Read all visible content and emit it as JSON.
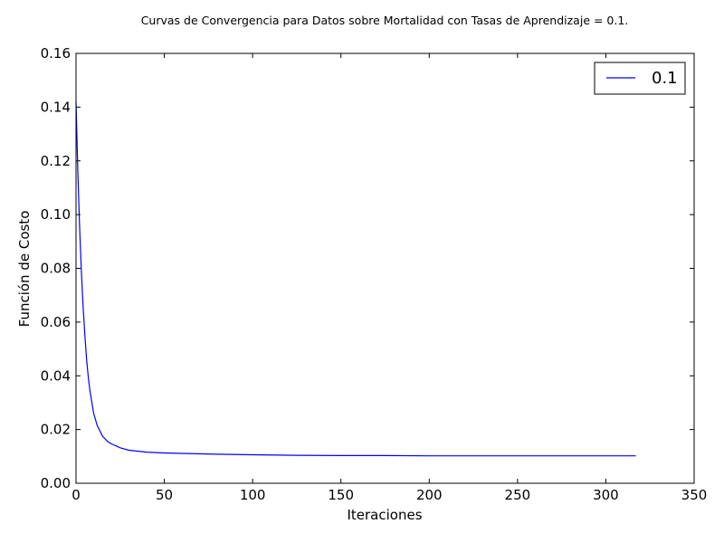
{
  "chart_data": {
    "type": "line",
    "title": "Curvas de Convergencia para Datos sobre Mortalidad con Tasas de Aprendizaje = 0.1.",
    "xlabel": "Iteraciones",
    "ylabel": "Función de Costo",
    "xlim": [
      0,
      350
    ],
    "ylim": [
      0,
      0.16
    ],
    "xticks": [
      0,
      50,
      100,
      150,
      200,
      250,
      300,
      350
    ],
    "yticks": [
      0.0,
      0.02,
      0.04,
      0.06,
      0.08,
      0.1,
      0.12,
      0.14,
      0.16
    ],
    "xtick_labels": [
      "0",
      "50",
      "100",
      "150",
      "200",
      "250",
      "300",
      "350"
    ],
    "ytick_labels": [
      "0.00",
      "0.02",
      "0.04",
      "0.06",
      "0.08",
      "0.10",
      "0.12",
      "0.14",
      "0.16"
    ],
    "grid": false,
    "legend_position": "top-right",
    "series": [
      {
        "name": "0.1",
        "color": "#0000ff",
        "x": [
          0,
          1,
          2,
          3,
          4,
          5,
          6,
          7,
          8,
          10,
          12,
          15,
          18,
          20,
          25,
          30,
          40,
          50,
          60,
          80,
          100,
          125,
          150,
          175,
          200,
          225,
          250,
          275,
          300,
          317
        ],
        "y": [
          0.142,
          0.116,
          0.096,
          0.079,
          0.066,
          0.055,
          0.046,
          0.039,
          0.034,
          0.026,
          0.0215,
          0.0175,
          0.0155,
          0.0147,
          0.0132,
          0.0123,
          0.0116,
          0.0113,
          0.0111,
          0.0108,
          0.0106,
          0.0104,
          0.0103,
          0.0103,
          0.0102,
          0.0102,
          0.0102,
          0.0102,
          0.0102,
          0.0102
        ]
      }
    ]
  }
}
